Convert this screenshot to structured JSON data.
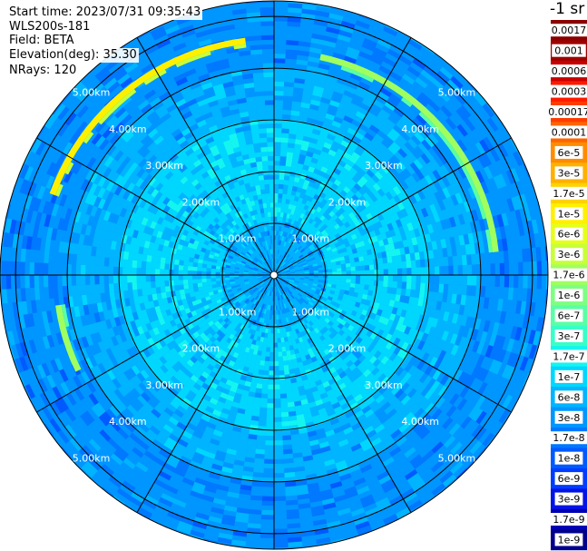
{
  "info": {
    "start_time": "Start time: 2023/07/31 09:35:43",
    "station": "WLS200s-181",
    "field": "Field: BETA",
    "elevation": "Elevation(deg): 35.30",
    "nrays": "NRays: 120"
  },
  "colorbar": {
    "unit_label": "-1 sr",
    "levels": [
      {
        "label": "0.0017",
        "color": "#8b0000"
      },
      {
        "label": "0.001",
        "color": "#a00000"
      },
      {
        "label": "0.0006",
        "color": "#c80000"
      },
      {
        "label": "0.0003",
        "color": "#ff1a00"
      },
      {
        "label": "0.00017",
        "color": "#ff3c00"
      },
      {
        "label": "0.0001",
        "color": "#ff6400"
      },
      {
        "label": "6e-5",
        "color": "#ff8c00"
      },
      {
        "label": "3e-5",
        "color": "#ffb000"
      },
      {
        "label": "1.7e-5",
        "color": "#ffd200"
      },
      {
        "label": "1e-5",
        "color": "#fff000"
      },
      {
        "label": "6e-6",
        "color": "#e6ff1a"
      },
      {
        "label": "3e-6",
        "color": "#c8ff37"
      },
      {
        "label": "1.7e-6",
        "color": "#a0ff5f"
      },
      {
        "label": "1e-6",
        "color": "#7dff82"
      },
      {
        "label": "6e-7",
        "color": "#5affa5"
      },
      {
        "label": "3e-7",
        "color": "#37ffc8"
      },
      {
        "label": "1.7e-7",
        "color": "#14f5f0"
      },
      {
        "label": "1e-7",
        "color": "#00d7ff"
      },
      {
        "label": "6e-8",
        "color": "#00b4ff"
      },
      {
        "label": "3e-8",
        "color": "#0096ff"
      },
      {
        "label": "1.7e-8",
        "color": "#0078ff"
      },
      {
        "label": "1e-8",
        "color": "#005aff"
      },
      {
        "label": "6e-9",
        "color": "#003cff"
      },
      {
        "label": "3e-9",
        "color": "#0014e6"
      },
      {
        "label": "1.7e-9",
        "color": "#0000b4"
      },
      {
        "label": "1e-9",
        "color": "#00008b"
      }
    ]
  },
  "chart_data": {
    "type": "heatmap",
    "projection": "polar PPI",
    "field": "BETA",
    "unit": "-1 sr",
    "max_range_km": 5.3,
    "ring_ranges_km": [
      1,
      2,
      3,
      4,
      5
    ],
    "ring_labels": [
      "1.00km",
      "2.00km",
      "3.00km",
      "4.00km",
      "5.00km"
    ],
    "spoke_azimuths_deg": [
      0,
      30,
      60,
      90,
      120,
      150,
      180,
      210,
      240,
      270,
      300,
      330
    ],
    "range_profile": [
      {
        "range_km": 0.5,
        "beta": "6e-8"
      },
      {
        "range_km": 1.0,
        "beta": "1e-7"
      },
      {
        "range_km": 2.0,
        "beta": "1e-7"
      },
      {
        "range_km": 3.0,
        "beta": "6e-8"
      },
      {
        "range_km": 4.0,
        "beta": "3e-8"
      },
      {
        "range_km": 5.0,
        "beta": "3e-8"
      }
    ],
    "arcs": [
      {
        "range_km": 4.3,
        "az_from_deg": 12,
        "az_to_deg": 82,
        "beta": "1.7e-6"
      },
      {
        "range_km": 4.55,
        "az_from_deg": 290,
        "az_to_deg": 352,
        "beta": "1e-5"
      },
      {
        "range_km": 4.2,
        "az_from_deg": 244,
        "az_to_deg": 262,
        "beta": "1.7e-6"
      }
    ],
    "colors": {
      "grid": "#000000",
      "ring_label": "#ffffff",
      "background": "#ffffff"
    }
  }
}
